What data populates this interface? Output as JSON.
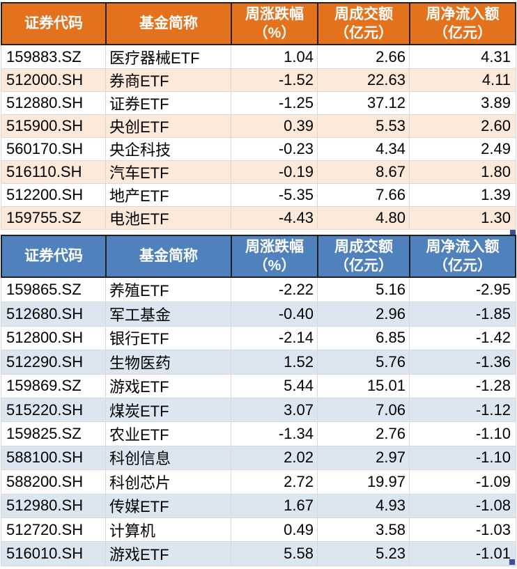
{
  "ui": {
    "background": "#FFFFFF",
    "selection_handle_color": "#3B4DA3",
    "grid_line_color": "#D9D9D9",
    "header_divider_color": "#1F1F1F",
    "header_text_color": "#FFFFFF",
    "body_text_color": "#000000"
  },
  "chart_data": [
    {
      "type": "table",
      "id": "weekly-net-inflow-table",
      "theme": "orange",
      "header_bg": "#E4711B",
      "alt_row_bg": "#FDE9D9",
      "legend_position": "none",
      "columns": [
        {
          "key": "security-code",
          "label": "证券代码",
          "unit": ""
        },
        {
          "key": "fund-name",
          "label": "基金简称",
          "unit": ""
        },
        {
          "key": "weekly-change",
          "label": "周涨跌幅",
          "unit": "（%）"
        },
        {
          "key": "weekly-turnover",
          "label": "周成交额",
          "unit": "（亿元）"
        },
        {
          "key": "weekly-net-inflow",
          "label": "周净流入额",
          "unit": "（亿元）"
        }
      ],
      "rows": [
        [
          "159883.SZ",
          "医疗器械ETF",
          "1.04",
          "2.66",
          "4.31"
        ],
        [
          "512000.SH",
          "券商ETF",
          "-1.52",
          "22.63",
          "4.11"
        ],
        [
          "512880.SH",
          "证券ETF",
          "-1.25",
          "37.12",
          "3.89"
        ],
        [
          "515900.SH",
          "央创ETF",
          "0.39",
          "5.53",
          "2.60"
        ],
        [
          "560170.SH",
          "央企科技",
          "-0.23",
          "4.34",
          "2.49"
        ],
        [
          "516110.SH",
          "汽车ETF",
          "-0.19",
          "8.67",
          "1.80"
        ],
        [
          "512200.SH",
          "地产ETF",
          "-5.35",
          "7.66",
          "1.39"
        ],
        [
          "159755.SZ",
          "电池ETF",
          "-4.43",
          "4.80",
          "1.30"
        ]
      ]
    },
    {
      "type": "table",
      "id": "weekly-net-outflow-table",
      "theme": "blue",
      "header_bg": "#4F81BD",
      "alt_row_bg": "#DCE6F1",
      "legend_position": "none",
      "columns": [
        {
          "key": "security-code",
          "label": "证券代码",
          "unit": ""
        },
        {
          "key": "fund-name",
          "label": "基金简称",
          "unit": ""
        },
        {
          "key": "weekly-change",
          "label": "周涨跌幅",
          "unit": "（%）"
        },
        {
          "key": "weekly-turnover",
          "label": "周成交额",
          "unit": "（亿元）"
        },
        {
          "key": "weekly-net-inflow",
          "label": "周净流入额",
          "unit": "（亿元）"
        }
      ],
      "rows": [
        [
          "159865.SZ",
          "养殖ETF",
          "-2.22",
          "5.16",
          "-2.95"
        ],
        [
          "512680.SH",
          "军工基金",
          "-0.40",
          "2.96",
          "-1.85"
        ],
        [
          "512800.SH",
          "银行ETF",
          "-2.14",
          "6.85",
          "-1.42"
        ],
        [
          "512290.SH",
          "生物医药",
          "1.52",
          "5.76",
          "-1.36"
        ],
        [
          "159869.SZ",
          "游戏ETF",
          "5.44",
          "15.01",
          "-1.28"
        ],
        [
          "515220.SH",
          "煤炭ETF",
          "3.07",
          "7.06",
          "-1.12"
        ],
        [
          "159825.SZ",
          "农业ETF",
          "-1.34",
          "2.76",
          "-1.10"
        ],
        [
          "588100.SH",
          "科创信息",
          "2.02",
          "2.97",
          "-1.10"
        ],
        [
          "588200.SH",
          "科创芯片",
          "2.72",
          "19.97",
          "-1.09"
        ],
        [
          "512980.SH",
          "传媒ETF",
          "1.67",
          "4.93",
          "-1.08"
        ],
        [
          "512720.SH",
          "计算机",
          "0.49",
          "3.58",
          "-1.03"
        ],
        [
          "516010.SH",
          "游戏ETF",
          "5.58",
          "5.23",
          "-1.01"
        ]
      ]
    }
  ]
}
